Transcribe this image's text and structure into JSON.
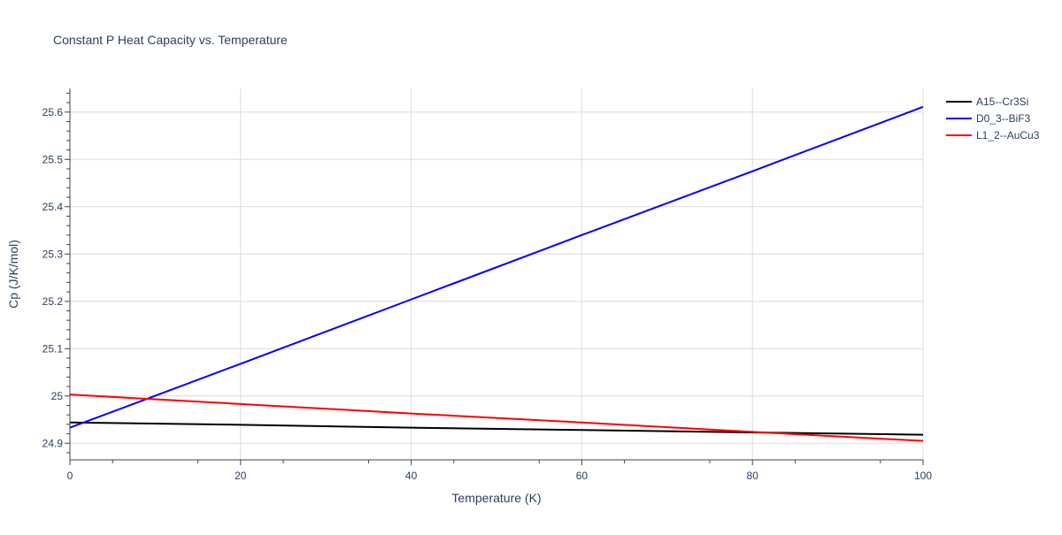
{
  "chart_data": {
    "type": "line",
    "title": "Constant P Heat Capacity vs. Temperature",
    "xlabel": "Temperature (K)",
    "ylabel": "Cp (J/K/mol)",
    "xlim": [
      0,
      100
    ],
    "ylim": [
      24.865,
      25.65
    ],
    "xticks": [
      0,
      20,
      40,
      60,
      80,
      100
    ],
    "xtick_labels": [
      "0",
      "20",
      "40",
      "60",
      "80",
      "100"
    ],
    "yticks": [
      24.9,
      25.0,
      25.1,
      25.2,
      25.3,
      25.4,
      25.5,
      25.6
    ],
    "ytick_labels": [
      "24.9",
      "25",
      "25.1",
      "25.2",
      "25.3",
      "25.4",
      "25.5",
      "25.6"
    ],
    "grid": true,
    "legend_position": "right",
    "series": [
      {
        "name": "A15--Cr3Si",
        "color": "#000000",
        "x": [
          0,
          20,
          40,
          60,
          80,
          100
        ],
        "y": [
          24.944,
          24.939,
          24.933,
          24.928,
          24.923,
          24.918
        ]
      },
      {
        "name": "D0_3--BiF3",
        "color": "#0000ff",
        "x": [
          0,
          20,
          40,
          60,
          80,
          100
        ],
        "y": [
          24.933,
          25.068,
          25.204,
          25.34,
          25.475,
          25.611
        ]
      },
      {
        "name": "L1_2--AuCu3",
        "color": "#ff0000",
        "x": [
          0,
          20,
          40,
          60,
          80,
          100
        ],
        "y": [
          25.003,
          24.983,
          24.963,
          24.944,
          24.924,
          24.905
        ]
      }
    ]
  }
}
